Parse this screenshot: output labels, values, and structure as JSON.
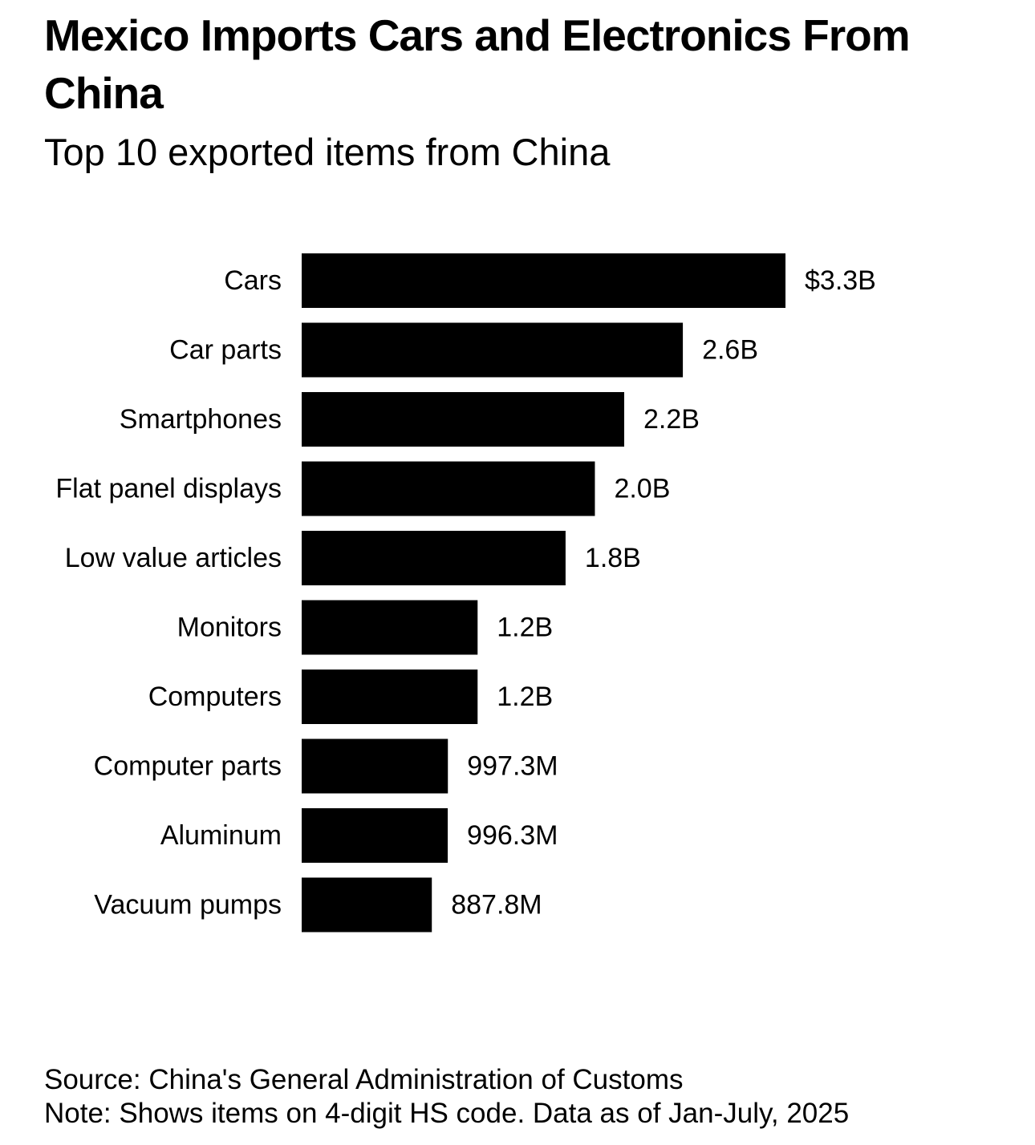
{
  "chart_data": {
    "type": "barh",
    "title": "Mexico Imports Cars and Electronics From China",
    "subtitle": "Top 10 exported items from China",
    "categories": [
      "Cars",
      "Car parts",
      "Smartphones",
      "Flat panel displays",
      "Low value articles",
      "Monitors",
      "Computers",
      "Computer parts",
      "Aluminum",
      "Vacuum pumps"
    ],
    "values": [
      3300000000,
      2600000000,
      2200000000,
      2000000000,
      1800000000,
      1200000000,
      1200000000,
      997300000,
      996300000,
      887800000
    ],
    "value_labels": [
      "$3.3B",
      "2.6B",
      "2.2B",
      "2.0B",
      "1.8B",
      "1.2B",
      "1.2B",
      "997.3M",
      "996.3M",
      "887.8M"
    ],
    "color": "#000000",
    "source": "Source: China's General Administration of Customs",
    "note": "Note: Shows items on 4-digit HS code. Data as of Jan-July, 2025"
  }
}
